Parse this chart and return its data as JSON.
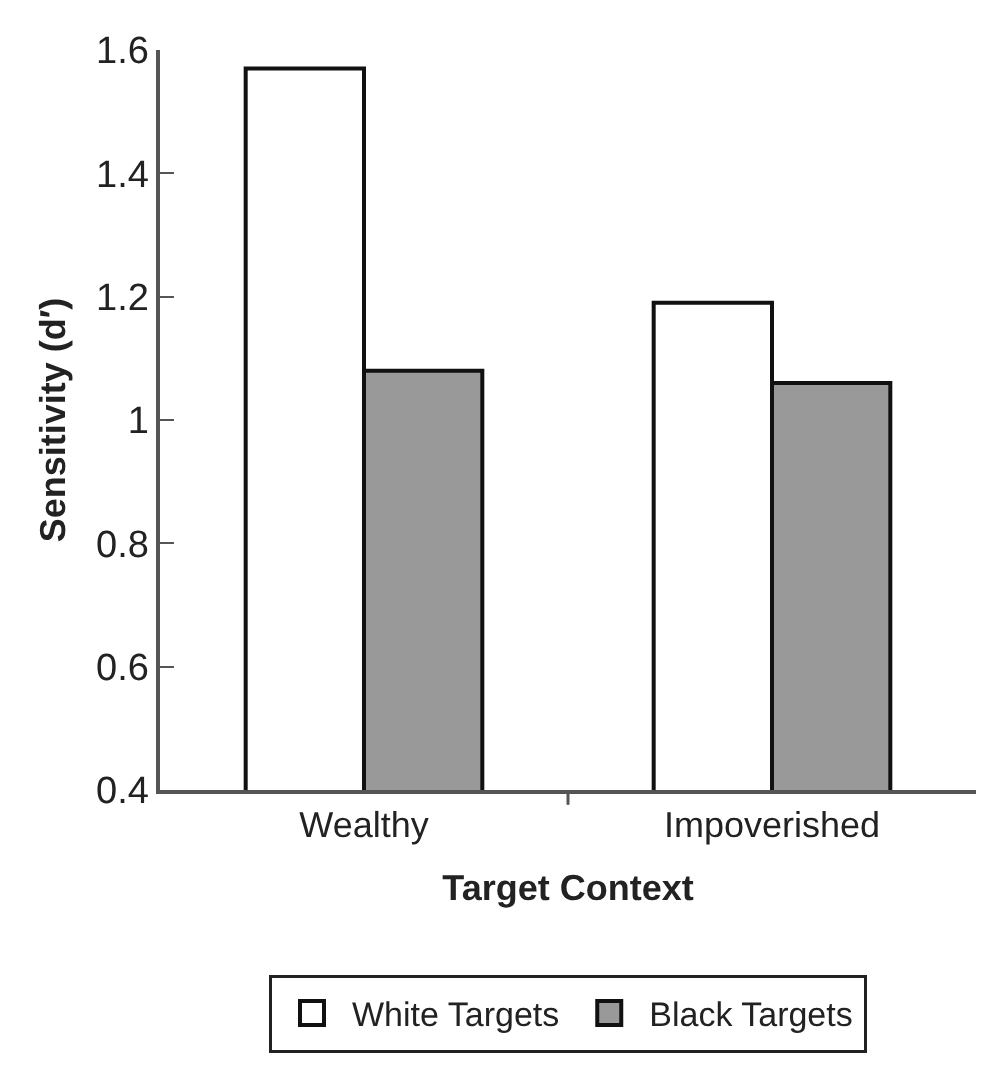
{
  "chart_data": {
    "type": "bar",
    "xlabel": "Target Context",
    "ylabel": "Sensitivity (d′)",
    "categories": [
      "Wealthy",
      "Impoverished"
    ],
    "series": [
      {
        "name": "White Targets",
        "color": "#ffffff",
        "values": [
          1.57,
          1.19
        ]
      },
      {
        "name": "Black Targets",
        "color": "#999999",
        "values": [
          1.08,
          1.06
        ]
      }
    ],
    "ylim": [
      0.4,
      1.6
    ],
    "yticks": [
      {
        "value": 0.4,
        "label": "0.4"
      },
      {
        "value": 0.6,
        "label": "0.6"
      },
      {
        "value": 0.8,
        "label": "0.8"
      },
      1,
      {
        "value": 1.2,
        "label": "1.2"
      },
      {
        "value": 1.4,
        "label": "1.4"
      },
      {
        "value": 1.6,
        "label": "1.6"
      }
    ],
    "grid": false,
    "legend": "bottom"
  }
}
